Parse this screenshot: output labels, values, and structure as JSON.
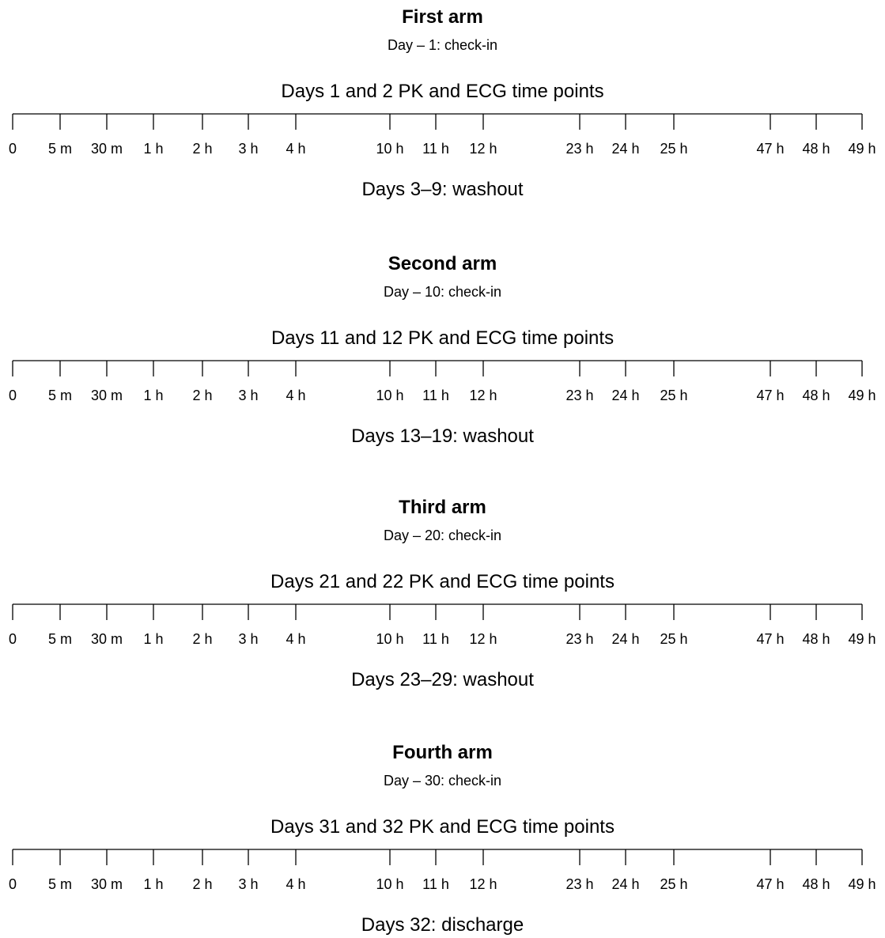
{
  "arms": [
    {
      "title": "First arm",
      "checkin": "Day – 1: check-in",
      "timeline_label": "Days 1 and 2 PK and ECG time points",
      "after": "Days 3–9: washout"
    },
    {
      "title": "Second arm",
      "checkin": "Day – 10: check-in",
      "timeline_label": "Days 11 and 12 PK and ECG time points",
      "after": "Days 13–19: washout"
    },
    {
      "title": "Third arm",
      "checkin": "Day – 20: check-in",
      "timeline_label": "Days 21 and 22 PK and ECG time points",
      "after": "Days 23–29: washout"
    },
    {
      "title": "Fourth arm",
      "checkin": "Day – 30: check-in",
      "timeline_label": "Days 31 and 32 PK and ECG time points",
      "after": "Days 32: discharge"
    }
  ],
  "time_points": [
    "0",
    "5 m",
    "30 m",
    "1 h",
    "2 h",
    "3 h",
    "4 h",
    "10 h",
    "11 h",
    "12 h",
    "23 h",
    "24 h",
    "25 h",
    "47 h",
    "48 h",
    "49 h"
  ],
  "line_color": "#000000"
}
